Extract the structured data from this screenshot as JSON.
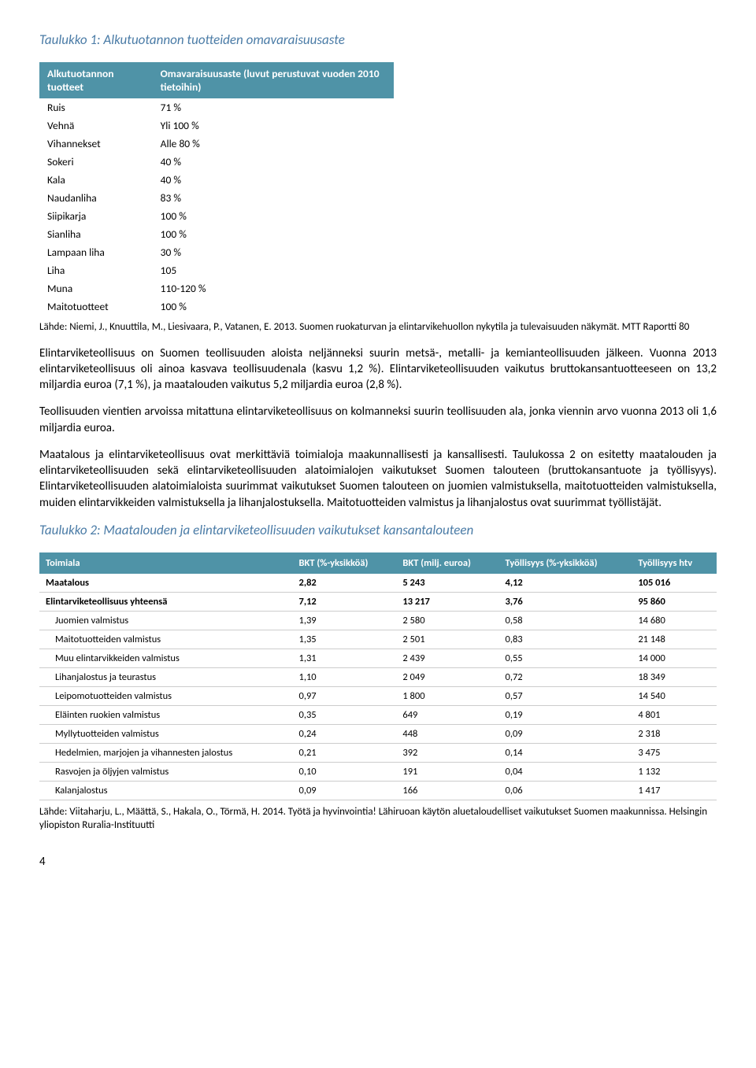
{
  "table1": {
    "title": "Taulukko 1: Alkutuotannon tuotteiden omavaraisuusaste",
    "headers": [
      "Alkutuotannon tuotteet",
      "Omavaraisuusaste (luvut perustuvat vuoden 2010 tietoihin)"
    ],
    "rows": [
      {
        "product": "Ruis",
        "value": "71 %"
      },
      {
        "product": "Vehnä",
        "value": "Yli 100 %"
      },
      {
        "product": "Vihannekset",
        "value": "Alle 80 %"
      },
      {
        "product": "Sokeri",
        "value": "40 %"
      },
      {
        "product": "Kala",
        "value": "40 %"
      },
      {
        "product": "Naudanliha",
        "value": "83 %"
      },
      {
        "product": "Siipikarja",
        "value": "100 %"
      },
      {
        "product": "Sianliha",
        "value": "100 %"
      },
      {
        "product": "Lampaan liha",
        "value": "30 %"
      },
      {
        "product": "Liha",
        "value": "105"
      },
      {
        "product": "Muna",
        "value": "110-120 %"
      },
      {
        "product": "Maitotuotteet",
        "value": "100 %"
      }
    ],
    "citation": "Lähde: Niemi, J., Knuuttila, M., Liesivaara, P., Vatanen, E. 2013. Suomen ruokaturvan ja elintarvikehuollon nykytila ja tulevaisuuden näkymät. MTT Raportti 80"
  },
  "paragraphs": {
    "p1": "Elintarviketeollisuus on Suomen teollisuuden aloista neljänneksi suurin metsä-, metalli- ja kemianteollisuuden jälkeen. Vuonna 2013 elintarviketeollisuus oli ainoa kasvava teollisuudenala (kasvu 1,2 %). Elintarviketeollisuuden vaikutus bruttokansantuotteeseen on 13,2 miljardia euroa (7,1 %), ja maatalouden vaikutus 5,2 miljardia euroa (2,8 %).",
    "p2": "Teollisuuden vientien arvoissa mitattuna elintarviketeollisuus on kolmanneksi suurin teollisuuden ala, jonka viennin arvo vuonna 2013 oli 1,6 miljardia euroa.",
    "p3": "Maatalous ja elintarviketeollisuus ovat merkittäviä toimialoja maakunnallisesti ja kansallisesti. Taulukossa 2 on esitetty maatalouden ja elintarviketeollisuuden sekä elintarviketeollisuuden alatoimialojen vaikutukset Suomen talouteen (bruttokansantuote ja työllisyys). Elintarviketeollisuuden alatoimialoista suurimmat vaikutukset Suomen talouteen on juomien valmistuksella, maitotuotteiden valmistuksella, muiden elintarvikkeiden valmistuksella ja lihanjalostuksella. Maitotuotteiden valmistus ja lihanjalostus ovat suurimmat työllistäjät."
  },
  "table2": {
    "title": "Taulukko 2: Maatalouden ja elintarviketeollisuuden vaikutukset kansantalouteen",
    "headers": [
      "Toimiala",
      "BKT (%-yksikköä)",
      "BKT (milj. euroa)",
      "Työllisyys (%-yksikköä)",
      "Työllisyys htv"
    ],
    "rows": [
      {
        "cells": [
          "Maatalous",
          "2,82",
          "5 243",
          "4,12",
          "105 016"
        ],
        "bold": true
      },
      {
        "cells": [
          "Elintarviketeollisuus yhteensä",
          "7,12",
          "13 217",
          "3,76",
          "95 860"
        ],
        "bold": true
      },
      {
        "cells": [
          "Juomien valmistus",
          "1,39",
          "2 580",
          "0,58",
          "14 680"
        ],
        "indent": true
      },
      {
        "cells": [
          "Maitotuotteiden valmistus",
          "1,35",
          "2 501",
          "0,83",
          "21 148"
        ],
        "indent": true
      },
      {
        "cells": [
          "Muu elintarvikkeiden valmistus",
          "1,31",
          "2 439",
          "0,55",
          "14 000"
        ],
        "indent": true
      },
      {
        "cells": [
          "Lihanjalostus ja teurastus",
          "1,10",
          "2 049",
          "0,72",
          "18 349"
        ],
        "indent": true
      },
      {
        "cells": [
          "Leipomotuotteiden valmistus",
          "0,97",
          "1 800",
          "0,57",
          "14 540"
        ],
        "indent": true
      },
      {
        "cells": [
          "Eläinten ruokien valmistus",
          "0,35",
          "649",
          "0,19",
          "4 801"
        ],
        "indent": true
      },
      {
        "cells": [
          "Myllytuotteiden valmistus",
          "0,24",
          "448",
          "0,09",
          "2 318"
        ],
        "indent": true
      },
      {
        "cells": [
          "Hedelmien, marjojen ja vihannesten jalostus",
          "0,21",
          "392",
          "0,14",
          "3 475"
        ],
        "indent": true
      },
      {
        "cells": [
          "Rasvojen ja öljyjen valmistus",
          "0,10",
          "191",
          "0,04",
          "1 132"
        ],
        "indent": true
      },
      {
        "cells": [
          "Kalanjalostus",
          "0,09",
          "166",
          "0,06",
          "1 417"
        ],
        "indent": true
      }
    ],
    "citation": "Lähde: Viitaharju, L., Määttä, S., Hakala, O., Törmä, H. 2014. Työtä ja hyvinvointia! Lähiruoan käytön aluetaloudelliset vaikutukset Suomen maakunnissa. Helsingin yliopiston Ruralia-Instituutti"
  },
  "page_number": "4"
}
